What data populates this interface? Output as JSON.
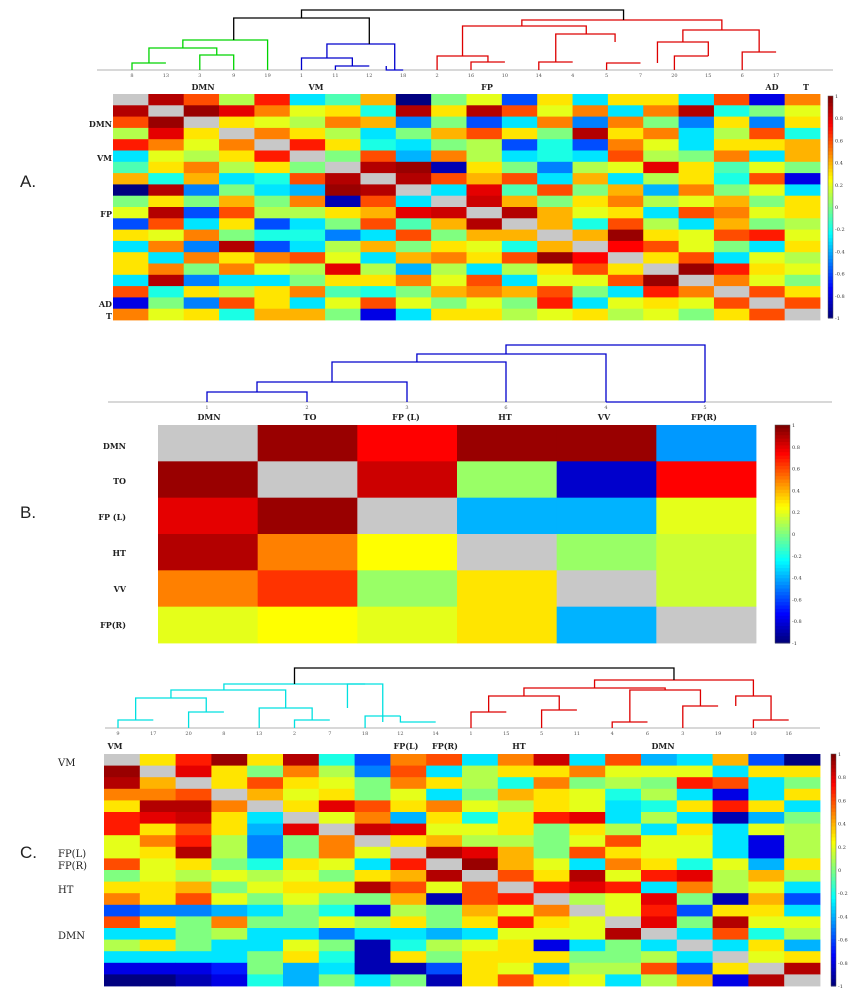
{
  "panels": [
    {
      "key": "A",
      "label": "A.",
      "leaves": [
        "8",
        "13",
        "3",
        "9",
        "19",
        "1",
        "11",
        "12",
        "18",
        "2",
        "16",
        "10",
        "14",
        "4",
        "5",
        "7",
        "20",
        "15",
        "6",
        "17"
      ],
      "group_labels": [
        "DMN",
        "VM",
        "FP",
        "AD",
        "T"
      ],
      "row_labels": [
        "DMN",
        "VM",
        "FP",
        "AD",
        "T"
      ]
    },
    {
      "key": "B",
      "label": "B.",
      "leaves": [
        "1",
        "2",
        "3",
        "6",
        "4",
        "5"
      ],
      "group_labels": [
        "DMN",
        "TO",
        "FP (L)",
        "HT",
        "VV",
        "FP(R)"
      ],
      "row_labels": [
        "DMN",
        "TO",
        "FP (L)",
        "HT",
        "VV",
        "FP(R)"
      ]
    },
    {
      "key": "C",
      "label": "C.",
      "leaves": [
        "9",
        "17",
        "20",
        "8",
        "13",
        "2",
        "7",
        "18",
        "12",
        "14",
        "1",
        "15",
        "5",
        "11",
        "4",
        "6",
        "3",
        "19",
        "10",
        "16"
      ],
      "group_labels": [
        "VM",
        "FP(L)",
        "FP(R)",
        "HT",
        "DMN"
      ],
      "row_labels": [
        "VM",
        "FP(L)",
        "FP(R)",
        "HT",
        "DMN"
      ]
    }
  ],
  "colorbar_ticks": [
    "1",
    "0.8",
    "0.6",
    "0.4",
    "0.2",
    "0",
    "-0.2",
    "-0.4",
    "-0.6",
    "-0.8",
    "-1"
  ],
  "colors": {
    "diagonal": "#c8c8c8",
    "dendro_top": "#000000",
    "green_cluster": "#00d400",
    "blue_cluster": "#0000cc",
    "red_cluster": "#dd0000",
    "cyan_cluster": "#00e0e0"
  },
  "chart_data": [
    {
      "type": "heatmap",
      "panel": "A",
      "value_range": [
        -1,
        1
      ],
      "colormap": "jet",
      "x": [
        "8",
        "13",
        "3",
        "9",
        "19",
        "1",
        "11",
        "12",
        "18",
        "2",
        "16",
        "10",
        "14",
        "4",
        "5",
        "7",
        "20",
        "15",
        "6",
        "17"
      ],
      "y": [
        "8",
        "13",
        "3",
        "9",
        "19",
        "1",
        "11",
        "12",
        "18",
        "2",
        "16",
        "10",
        "14",
        "4",
        "5",
        "7",
        "20",
        "15",
        "6",
        "17"
      ],
      "values": [
        [
          null,
          0.9,
          0.6,
          0.1,
          0.7,
          -0.3,
          -0.1,
          0.4,
          -1.0,
          0.0,
          0.2,
          -0.6,
          0.3,
          -0.3,
          0.3,
          0.3,
          -0.3,
          0.6,
          -0.8,
          0.5
        ],
        [
          0.9,
          null,
          0.95,
          0.8,
          0.5,
          0.2,
          0.3,
          -0.2,
          0.9,
          0.3,
          0.9,
          0.6,
          0.2,
          0.5,
          -0.3,
          0.5,
          0.9,
          -0.2,
          0.0,
          0.2
        ],
        [
          0.6,
          0.95,
          null,
          0.3,
          0.2,
          0.1,
          0.5,
          0.4,
          -0.5,
          0.0,
          -0.6,
          -0.3,
          0.5,
          -0.5,
          0.5,
          0.0,
          -0.5,
          0.3,
          -0.5,
          0.3
        ],
        [
          0.1,
          0.8,
          0.3,
          null,
          0.5,
          0.3,
          0.1,
          -0.3,
          0.0,
          0.4,
          0.6,
          0.3,
          0.0,
          0.9,
          0.3,
          0.5,
          -0.3,
          0.1,
          0.6,
          -0.2
        ],
        [
          0.7,
          0.5,
          0.2,
          0.5,
          null,
          0.7,
          0.3,
          -0.2,
          -0.3,
          0.0,
          0.1,
          -0.6,
          -0.2,
          -0.6,
          0.5,
          0.2,
          -0.3,
          0.3,
          0.3,
          0.4
        ],
        [
          -0.3,
          0.2,
          0.1,
          0.3,
          0.7,
          null,
          0.0,
          0.6,
          -0.4,
          0.5,
          0.1,
          -0.3,
          -0.2,
          -0.3,
          0.6,
          0.1,
          0.0,
          0.5,
          -0.3,
          0.4
        ],
        [
          -0.1,
          0.3,
          0.5,
          0.1,
          0.3,
          0.0,
          null,
          0.9,
          0.95,
          -0.9,
          0.3,
          0.0,
          -0.5,
          0.1,
          0.2,
          0.8,
          0.3,
          -0.1,
          0.2,
          0.0
        ],
        [
          0.4,
          -0.2,
          0.4,
          -0.3,
          -0.2,
          0.6,
          0.9,
          null,
          0.9,
          0.6,
          0.4,
          0.6,
          -0.3,
          0.4,
          -0.3,
          0.1,
          0.3,
          -0.2,
          0.6,
          -0.8
        ],
        [
          -1.0,
          0.9,
          -0.5,
          0.0,
          -0.3,
          -0.4,
          0.95,
          0.9,
          null,
          -0.3,
          0.8,
          -0.1,
          0.6,
          0.0,
          0.4,
          -0.4,
          0.5,
          0.0,
          0.2,
          -0.3
        ],
        [
          0.0,
          0.3,
          0.0,
          0.4,
          0.0,
          0.5,
          -0.9,
          0.6,
          -0.3,
          null,
          0.85,
          0.4,
          0.0,
          0.3,
          0.5,
          0.1,
          0.2,
          0.4,
          0.0,
          0.3
        ],
        [
          0.2,
          0.9,
          -0.6,
          0.6,
          0.1,
          0.1,
          0.3,
          0.4,
          0.8,
          0.85,
          null,
          0.9,
          0.4,
          0.2,
          0.3,
          -0.3,
          0.6,
          0.5,
          0.2,
          0.3
        ],
        [
          -0.6,
          0.6,
          -0.3,
          0.3,
          -0.6,
          -0.3,
          0.0,
          0.6,
          -0.1,
          0.4,
          0.9,
          null,
          0.4,
          -0.2,
          0.6,
          0.1,
          -0.3,
          0.4,
          0.0,
          0.1
        ],
        [
          0.3,
          0.2,
          0.5,
          0.0,
          -0.2,
          -0.2,
          -0.5,
          -0.3,
          0.6,
          0.0,
          0.4,
          0.4,
          null,
          0.4,
          0.95,
          0.3,
          0.2,
          0.6,
          0.7,
          0.2
        ],
        [
          -0.3,
          0.5,
          -0.5,
          0.9,
          -0.6,
          -0.3,
          0.1,
          0.4,
          0.0,
          0.3,
          0.2,
          -0.2,
          0.4,
          null,
          0.75,
          0.6,
          0.2,
          0.0,
          -0.3,
          0.3
        ],
        [
          0.3,
          -0.3,
          0.5,
          0.3,
          0.5,
          0.6,
          0.2,
          -0.3,
          0.4,
          0.5,
          0.3,
          0.6,
          0.95,
          0.75,
          null,
          0.3,
          0.6,
          -0.3,
          0.2,
          0.1
        ],
        [
          0.3,
          0.5,
          0.0,
          0.5,
          0.2,
          0.1,
          0.8,
          0.1,
          -0.4,
          0.1,
          -0.3,
          0.1,
          0.3,
          0.6,
          0.3,
          null,
          0.95,
          0.7,
          0.3,
          0.2
        ],
        [
          -0.3,
          0.9,
          -0.5,
          -0.3,
          -0.3,
          0.0,
          0.3,
          0.3,
          0.5,
          0.2,
          0.6,
          -0.3,
          0.2,
          0.2,
          0.6,
          0.95,
          null,
          0.5,
          0.2,
          0.0
        ],
        [
          0.6,
          -0.2,
          0.3,
          0.1,
          0.3,
          0.5,
          -0.1,
          -0.2,
          0.0,
          0.4,
          0.5,
          0.4,
          0.6,
          0.0,
          -0.3,
          0.7,
          0.5,
          null,
          0.6,
          0.3
        ],
        [
          -0.8,
          0.0,
          -0.5,
          0.6,
          0.3,
          -0.3,
          0.2,
          0.6,
          0.2,
          0.0,
          0.2,
          0.0,
          0.7,
          -0.3,
          0.2,
          0.3,
          0.2,
          0.6,
          null,
          0.6
        ],
        [
          0.5,
          0.2,
          0.3,
          -0.2,
          0.4,
          0.4,
          0.0,
          -0.8,
          -0.3,
          0.3,
          0.3,
          0.1,
          0.2,
          0.3,
          0.1,
          0.2,
          0.0,
          0.3,
          0.6,
          null
        ]
      ]
    },
    {
      "type": "heatmap",
      "panel": "B",
      "value_range": [
        -1,
        1
      ],
      "colormap": "jet",
      "x": [
        "DMN",
        "TO",
        "FP (L)",
        "HT",
        "VV",
        "FP(R)"
      ],
      "y": [
        "DMN",
        "TO",
        "FP (L)",
        "HT",
        "VV",
        "FP(R)"
      ],
      "values": [
        [
          null,
          0.95,
          0.75,
          0.95,
          0.95,
          -0.45
        ],
        [
          0.95,
          null,
          0.85,
          0.05,
          -0.85,
          0.75
        ],
        [
          0.8,
          0.95,
          null,
          -0.4,
          -0.4,
          0.2
        ],
        [
          0.9,
          0.5,
          0.25,
          null,
          0.05,
          0.15
        ],
        [
          0.5,
          0.65,
          0.05,
          0.3,
          null,
          0.15
        ],
        [
          0.2,
          0.25,
          0.2,
          0.3,
          -0.4,
          null
        ]
      ]
    },
    {
      "type": "heatmap",
      "panel": "C",
      "value_range": [
        -1,
        1
      ],
      "colormap": "jet",
      "x": [
        "9",
        "17",
        "20",
        "8",
        "13",
        "2",
        "7",
        "18",
        "12",
        "14",
        "1",
        "15",
        "5",
        "11",
        "4",
        "6",
        "3",
        "19",
        "10",
        "16"
      ],
      "y": [
        "9",
        "17",
        "20",
        "8",
        "13",
        "2",
        "7",
        "18",
        "12",
        "14",
        "1",
        "15",
        "5",
        "11",
        "4",
        "6",
        "3",
        "19",
        "10",
        "16"
      ],
      "values": [
        [
          null,
          0.3,
          0.7,
          0.95,
          0.3,
          0.9,
          -0.2,
          -0.6,
          0.5,
          0.6,
          -0.3,
          0.5,
          0.85,
          -0.3,
          0.6,
          -0.4,
          -0.3,
          0.4,
          -0.6,
          -1.0
        ],
        [
          0.95,
          null,
          0.8,
          0.3,
          0.0,
          0.5,
          0.1,
          -0.5,
          0.6,
          -0.3,
          0.1,
          0.3,
          0.3,
          0.5,
          0.2,
          0.2,
          0.2,
          -0.3,
          0.3,
          0.3
        ],
        [
          0.9,
          0.4,
          null,
          0.3,
          0.6,
          0.3,
          0.2,
          0.0,
          0.5,
          0.3,
          0.1,
          -0.2,
          0.5,
          0.0,
          0.1,
          0.0,
          0.7,
          0.6,
          -0.3,
          0.0
        ],
        [
          0.5,
          0.5,
          0.6,
          null,
          0.4,
          0.2,
          0.3,
          0.0,
          0.2,
          -0.3,
          0.0,
          0.4,
          0.3,
          0.2,
          -0.2,
          0.1,
          -0.3,
          -0.8,
          -0.3,
          0.3
        ],
        [
          0.3,
          0.9,
          0.9,
          0.5,
          null,
          0.3,
          0.8,
          0.6,
          0.3,
          0.5,
          0.2,
          0.1,
          0.3,
          0.2,
          -0.3,
          -0.2,
          0.3,
          0.7,
          0.3,
          -0.3
        ],
        [
          0.7,
          0.8,
          0.85,
          0.3,
          -0.3,
          null,
          0.2,
          0.5,
          -0.4,
          0.3,
          -0.2,
          0.3,
          0.7,
          0.8,
          -0.3,
          0.1,
          -0.3,
          -0.9,
          -0.4,
          0.0
        ],
        [
          0.7,
          0.3,
          0.6,
          0.3,
          -0.4,
          0.8,
          null,
          0.85,
          0.8,
          0.2,
          0.2,
          0.3,
          0.0,
          0.3,
          0.1,
          -0.3,
          0.3,
          -0.3,
          0.2,
          0.1
        ],
        [
          0.2,
          0.5,
          0.7,
          0.1,
          -0.5,
          0.0,
          0.5,
          null,
          0.3,
          0.4,
          0.1,
          0.1,
          0.0,
          0.2,
          0.6,
          0.2,
          0.2,
          -0.3,
          -0.8,
          0.1
        ],
        [
          0.2,
          0.3,
          0.9,
          0.1,
          -0.5,
          0.0,
          0.5,
          0.2,
          null,
          0.9,
          0.8,
          0.4,
          0.0,
          0.6,
          0.3,
          0.2,
          0.2,
          -0.3,
          -0.8,
          0.1
        ],
        [
          0.6,
          0.2,
          0.3,
          0.0,
          -0.2,
          0.3,
          0.2,
          -0.3,
          0.7,
          null,
          0.95,
          0.4,
          0.2,
          -0.3,
          0.5,
          0.3,
          -0.2,
          0.2,
          -0.4,
          0.3
        ],
        [
          0.0,
          0.2,
          0.1,
          0.2,
          0.1,
          0.2,
          0.0,
          0.3,
          0.4,
          0.9,
          null,
          0.6,
          0.3,
          0.9,
          0.2,
          0.7,
          0.8,
          0.1,
          0.4,
          0.1
        ],
        [
          0.3,
          0.3,
          0.4,
          0.0,
          0.2,
          0.3,
          0.3,
          0.9,
          0.6,
          0.2,
          0.6,
          null,
          0.7,
          0.8,
          0.7,
          -0.3,
          0.5,
          0.1,
          0.2,
          -0.3
        ],
        [
          0.5,
          0.3,
          0.6,
          0.2,
          0.0,
          0.2,
          0.0,
          0.0,
          0.4,
          -0.9,
          0.6,
          0.7,
          null,
          0.1,
          0.2,
          0.8,
          0.0,
          -0.9,
          0.4,
          -0.6
        ],
        [
          -0.6,
          -0.5,
          -0.5,
          -0.4,
          -0.3,
          0.0,
          -0.2,
          -0.8,
          0.1,
          0.0,
          0.4,
          0.2,
          0.5,
          null,
          0.2,
          0.7,
          -0.6,
          0.3,
          0.3,
          -0.3
        ],
        [
          0.6,
          0.3,
          0.0,
          0.5,
          0.0,
          0.0,
          0.2,
          0.1,
          0.3,
          0.0,
          0.3,
          0.7,
          0.3,
          0.2,
          null,
          0.8,
          0.0,
          0.9,
          0.2,
          0.2
        ],
        [
          -0.3,
          -0.3,
          0.0,
          0.1,
          -0.3,
          -0.3,
          -0.5,
          -0.3,
          -0.3,
          -0.4,
          -0.3,
          0.2,
          0.2,
          0.2,
          0.9,
          null,
          -0.3,
          0.6,
          -0.2,
          0.1
        ],
        [
          0.1,
          0.3,
          0.0,
          -0.3,
          -0.3,
          0.2,
          0.0,
          -0.9,
          -0.2,
          0.1,
          0.2,
          0.3,
          -0.8,
          -0.3,
          0.0,
          -0.3,
          null,
          -0.3,
          0.3,
          -0.4
        ],
        [
          -0.3,
          -0.3,
          -0.3,
          -0.3,
          0.0,
          0.3,
          -0.2,
          -0.9,
          0.3,
          0.0,
          0.3,
          0.3,
          0.3,
          0.0,
          0.0,
          0.1,
          -0.3,
          null,
          0.2,
          0.3
        ],
        [
          -0.8,
          -0.8,
          -0.8,
          -0.7,
          0.0,
          -0.4,
          -0.3,
          -0.9,
          -0.9,
          -0.6,
          0.3,
          0.2,
          -0.4,
          0.1,
          0.1,
          0.6,
          -0.6,
          0.3,
          null,
          0.9
        ],
        [
          -1.0,
          -1.0,
          -0.9,
          -0.8,
          -0.2,
          -0.4,
          0.0,
          -0.3,
          0.0,
          -0.9,
          0.3,
          0.6,
          0.3,
          0.2,
          -0.3,
          0.1,
          0.4,
          -0.8,
          0.9,
          null
        ]
      ]
    }
  ]
}
